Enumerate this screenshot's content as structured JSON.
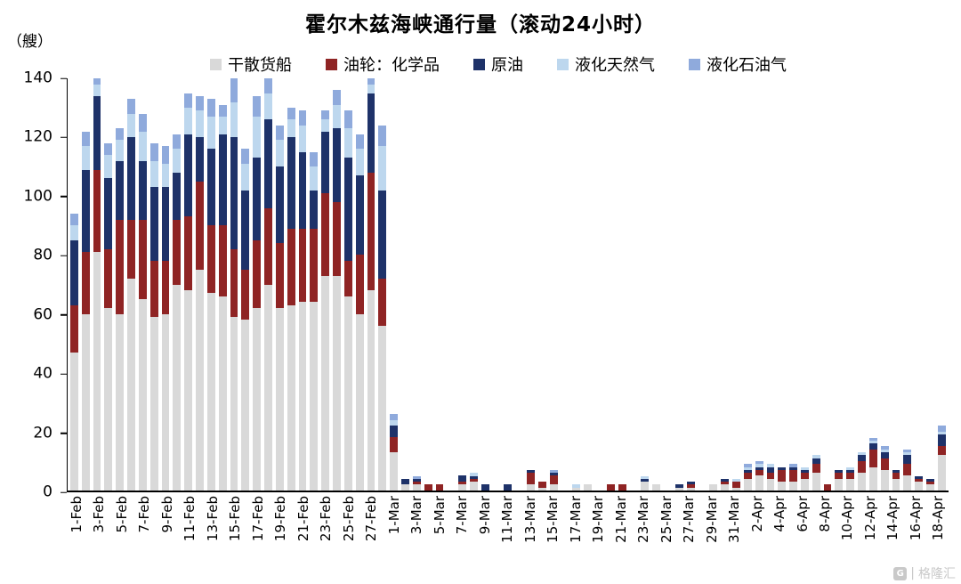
{
  "title": "霍尔木兹海峡通行量（滚动24小时）",
  "y_unit_label": "（艘）",
  "watermark": {
    "text": "格隆汇",
    "divider": "|"
  },
  "legend": [
    {
      "label": "干散货船",
      "color": "#d9d9d9"
    },
    {
      "label": "油轮：化学品",
      "color": "#8f2424"
    },
    {
      "label": "原油",
      "color": "#1e3269"
    },
    {
      "label": "液化天然气",
      "color": "#bdd7ee"
    },
    {
      "label": "液化石油气",
      "color": "#8faadc"
    }
  ],
  "chart_data": {
    "type": "bar",
    "stacked": true,
    "title": "霍尔木兹海峡通行量（滚动24小时）",
    "ylabel": "（艘）",
    "xlabel": "",
    "ylim": [
      0,
      140
    ],
    "yticks": [
      0,
      20,
      40,
      60,
      80,
      100,
      120,
      140
    ],
    "x_tick_every": 2,
    "legend_position": "top",
    "grid": false,
    "categories": [
      "1-Feb",
      "2-Feb",
      "3-Feb",
      "4-Feb",
      "5-Feb",
      "6-Feb",
      "7-Feb",
      "8-Feb",
      "9-Feb",
      "10-Feb",
      "11-Feb",
      "12-Feb",
      "13-Feb",
      "14-Feb",
      "15-Feb",
      "16-Feb",
      "17-Feb",
      "18-Feb",
      "19-Feb",
      "20-Feb",
      "21-Feb",
      "22-Feb",
      "23-Feb",
      "24-Feb",
      "25-Feb",
      "26-Feb",
      "27-Feb",
      "28-Feb",
      "1-Mar",
      "2-Mar",
      "3-Mar",
      "4-Mar",
      "5-Mar",
      "6-Mar",
      "7-Mar",
      "8-Mar",
      "9-Mar",
      "10-Mar",
      "11-Mar",
      "12-Mar",
      "13-Mar",
      "14-Mar",
      "15-Mar",
      "16-Mar",
      "17-Mar",
      "18-Mar",
      "19-Mar",
      "20-Mar",
      "21-Mar",
      "22-Mar",
      "23-Mar",
      "24-Mar",
      "25-Mar",
      "26-Mar",
      "27-Mar",
      "28-Mar",
      "29-Mar",
      "30-Mar",
      "31-Mar",
      "1-Apr",
      "2-Apr",
      "3-Apr",
      "4-Apr",
      "5-Apr",
      "6-Apr",
      "7-Apr",
      "8-Apr",
      "9-Apr",
      "10-Apr",
      "11-Apr",
      "12-Apr",
      "13-Apr",
      "14-Apr",
      "15-Apr",
      "16-Apr",
      "17-Apr",
      "18-Apr"
    ],
    "series": [
      {
        "name": "干散货船",
        "color": "#d9d9d9",
        "values": [
          47,
          60,
          81,
          62,
          60,
          72,
          65,
          59,
          60,
          70,
          68,
          75,
          67,
          66,
          59,
          58,
          62,
          70,
          62,
          63,
          64,
          64,
          73,
          73,
          66,
          60,
          68,
          56,
          13,
          2,
          2,
          0,
          0,
          0,
          2,
          3,
          0,
          0,
          0,
          0,
          2,
          1,
          2,
          0,
          1,
          2,
          0,
          0,
          0,
          0,
          3,
          2,
          0,
          1,
          1,
          0,
          2,
          2,
          1,
          4,
          5,
          4,
          3,
          3,
          4,
          6,
          0,
          4,
          4,
          6,
          8,
          7,
          4,
          5,
          3,
          2,
          12
        ]
      },
      {
        "name": "油轮：化学品",
        "color": "#8f2424",
        "values": [
          16,
          21,
          28,
          20,
          32,
          20,
          27,
          19,
          18,
          22,
          25,
          30,
          23,
          24,
          23,
          17,
          23,
          26,
          22,
          26,
          25,
          25,
          28,
          25,
          12,
          20,
          40,
          16,
          5,
          0,
          1,
          2,
          2,
          0,
          1,
          1,
          0,
          0,
          0,
          0,
          4,
          2,
          3,
          0,
          0,
          0,
          0,
          2,
          2,
          0,
          0,
          0,
          0,
          0,
          1,
          0,
          0,
          1,
          2,
          2,
          2,
          2,
          4,
          4,
          2,
          3,
          2,
          2,
          2,
          4,
          6,
          4,
          2,
          4,
          1,
          1,
          3
        ]
      },
      {
        "name": "原油",
        "color": "#1e3269",
        "values": [
          22,
          28,
          25,
          24,
          20,
          28,
          20,
          25,
          25,
          16,
          28,
          15,
          26,
          31,
          38,
          27,
          28,
          30,
          26,
          31,
          26,
          13,
          21,
          25,
          35,
          27,
          27,
          30,
          4,
          2,
          1,
          0,
          0,
          0,
          2,
          1,
          2,
          0,
          2,
          0,
          1,
          0,
          1,
          0,
          0,
          0,
          0,
          0,
          0,
          0,
          1,
          0,
          0,
          1,
          1,
          0,
          0,
          1,
          0,
          1,
          1,
          2,
          1,
          1,
          1,
          2,
          0,
          1,
          1,
          2,
          2,
          2,
          1,
          3,
          1,
          1,
          4
        ]
      },
      {
        "name": "液化天然气",
        "color": "#bdd7ee",
        "values": [
          5,
          8,
          4,
          8,
          7,
          8,
          10,
          9,
          8,
          8,
          9,
          9,
          11,
          6,
          12,
          9,
          14,
          9,
          9,
          6,
          9,
          8,
          4,
          8,
          10,
          9,
          3,
          15,
          2,
          0,
          0,
          0,
          0,
          0,
          0,
          1,
          0,
          0,
          0,
          0,
          0,
          0,
          0,
          0,
          1,
          0,
          0,
          0,
          0,
          0,
          1,
          0,
          0,
          0,
          0,
          0,
          0,
          0,
          1,
          1,
          1,
          1,
          0,
          0,
          1,
          1,
          0,
          0,
          1,
          1,
          1,
          1,
          0,
          1,
          0,
          0,
          1
        ]
      },
      {
        "name": "液化石油气",
        "color": "#8faadc",
        "values": [
          4,
          5,
          2,
          4,
          4,
          5,
          6,
          6,
          6,
          5,
          5,
          5,
          6,
          4,
          8,
          5,
          7,
          5,
          5,
          4,
          5,
          5,
          3,
          5,
          6,
          5,
          2,
          7,
          2,
          0,
          1,
          0,
          0,
          0,
          0,
          0,
          0,
          0,
          0,
          0,
          0,
          0,
          1,
          0,
          0,
          0,
          0,
          0,
          0,
          0,
          0,
          0,
          0,
          0,
          0,
          0,
          0,
          0,
          0,
          1,
          1,
          0,
          0,
          1,
          0,
          0,
          0,
          0,
          0,
          0,
          1,
          1,
          0,
          1,
          0,
          0,
          2
        ]
      }
    ]
  }
}
